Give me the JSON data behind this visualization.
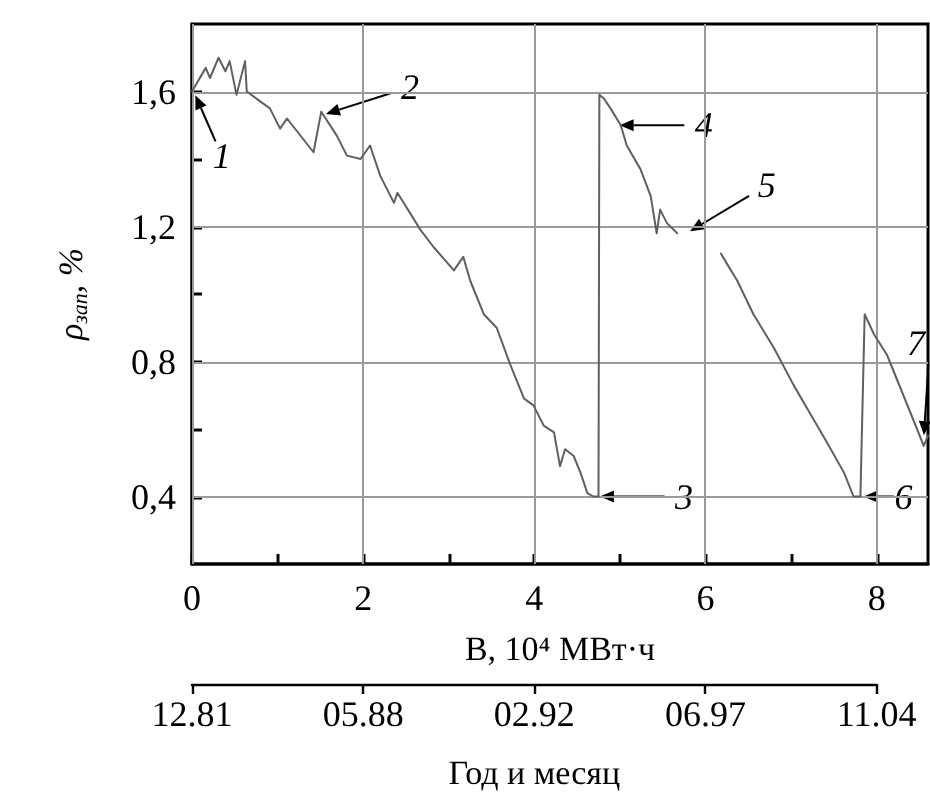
{
  "chart_data": {
    "type": "line",
    "xlabel": "B, 10⁴ МВт·ч",
    "ylabel": "ρ$_{зап}$, %",
    "x2label": "Год и месяц",
    "xlim": [
      0,
      8.6
    ],
    "xticks": [
      0,
      {
        "value": 1,
        "label": null
      },
      2,
      {
        "value": 3,
        "label": null
      },
      4,
      {
        "value": 5,
        "label": null
      },
      6,
      {
        "value": 7,
        "label": null
      },
      8
    ],
    "ylim": [
      0.2,
      1.8
    ],
    "yticks": [
      {
        "value": 0.4,
        "label": "0,4"
      },
      {
        "value": 0.6,
        "label": null
      },
      {
        "value": 0.8,
        "label": "0,8"
      },
      {
        "value": 1.0,
        "label": null
      },
      {
        "value": 1.2,
        "label": "1,2"
      },
      {
        "value": 1.4,
        "label": null
      },
      {
        "value": 1.6,
        "label": "1,6"
      }
    ],
    "grid": true,
    "marker": "none",
    "series": [
      {
        "color": "#606060",
        "x": [
          0,
          0.16,
          0.21,
          0.31,
          0.39,
          0.44,
          0.52,
          0.62,
          0.64,
          0.8,
          0.91,
          1.03,
          1.11,
          1.42,
          1.51,
          1.69,
          1.81,
          1.97,
          2.08,
          2.2,
          2.36,
          2.4,
          2.67,
          2.82,
          3.06,
          3.17,
          3.25,
          3.41,
          3.56,
          3.72,
          3.88,
          3.99,
          4.11,
          4.23,
          4.3,
          4.36,
          4.46,
          4.54,
          4.62,
          4.69,
          4.75,
          4.76,
          4.81,
          4.89,
          5.01,
          5.08,
          5.24,
          5.36,
          5.43,
          5.47,
          5.55,
          5.67,
          5.9,
          6.18,
          6.25,
          6.37,
          6.56,
          6.8,
          7.03,
          7.19,
          7.42,
          7.62,
          7.73,
          7.81,
          7.86,
          7.97,
          8.12,
          8.28,
          8.44,
          8.55,
          8.6
        ],
        "values": [
          1.6,
          1.67,
          1.64,
          1.7,
          1.66,
          1.69,
          1.59,
          1.69,
          1.6,
          1.57,
          1.55,
          1.49,
          1.52,
          1.42,
          1.54,
          1.47,
          1.41,
          1.4,
          1.44,
          1.35,
          1.27,
          1.3,
          1.19,
          1.14,
          1.07,
          1.11,
          1.04,
          0.94,
          0.9,
          0.79,
          0.69,
          0.67,
          0.61,
          0.59,
          0.49,
          0.54,
          0.52,
          0.47,
          0.41,
          0.4,
          0.4,
          1.59,
          1.58,
          1.55,
          1.5,
          1.44,
          1.37,
          1.29,
          1.18,
          1.25,
          1.21,
          1.18,
          null,
          1.12,
          1.09,
          1.04,
          0.94,
          0.84,
          0.73,
          0.66,
          0.56,
          0.47,
          0.4,
          0.4,
          0.94,
          0.88,
          0.82,
          0.72,
          0.62,
          0.55,
          0.58
        ]
      }
    ],
    "annotations": [
      {
        "text": "1",
        "x": 0.02,
        "y": 1.6
      },
      {
        "text": "2",
        "x": 1.52,
        "y": 1.53
      },
      {
        "text": "3",
        "x": 4.72,
        "y": 0.4
      },
      {
        "text": "4",
        "x": 4.95,
        "y": 1.5
      },
      {
        "text": "5",
        "x": 5.78,
        "y": 1.18
      },
      {
        "text": "6",
        "x": 7.8,
        "y": 0.4
      },
      {
        "text": "7",
        "x": 8.55,
        "y": 0.57
      },
      "12.81",
      "05.88",
      "02.92",
      "06.97",
      "11.04"
    ]
  }
}
